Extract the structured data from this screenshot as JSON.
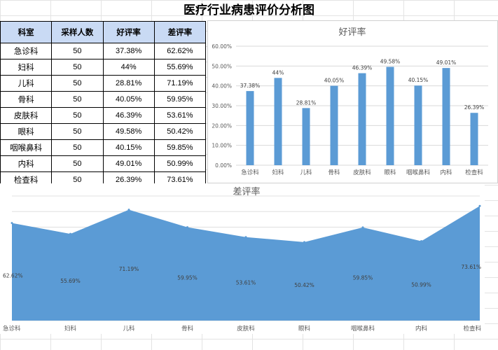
{
  "page": {
    "title": "医疗行业病患评价分析图"
  },
  "table": {
    "headers": [
      "科室",
      "采样人数",
      "好评率",
      "差评率"
    ],
    "rows": [
      [
        "急诊科",
        "50",
        "37.38%",
        "62.62%"
      ],
      [
        "妇科",
        "50",
        "44%",
        "55.69%"
      ],
      [
        "儿科",
        "50",
        "28.81%",
        "71.19%"
      ],
      [
        "骨科",
        "50",
        "40.05%",
        "59.95%"
      ],
      [
        "皮肤科",
        "50",
        "46.39%",
        "53.61%"
      ],
      [
        "眼科",
        "50",
        "49.58%",
        "50.42%"
      ],
      [
        "咽喉鼻科",
        "50",
        "40.15%",
        "59.85%"
      ],
      [
        "内科",
        "50",
        "49.01%",
        "50.99%"
      ],
      [
        "检查科",
        "50",
        "26.39%",
        "73.61%"
      ]
    ]
  },
  "chart_data": [
    {
      "type": "bar",
      "title": "好评率",
      "categories": [
        "急诊科",
        "妇科",
        "儿科",
        "骨科",
        "皮肤科",
        "眼科",
        "咽喉鼻科",
        "内科",
        "检查科"
      ],
      "values": [
        37.38,
        44,
        28.81,
        40.05,
        46.39,
        49.58,
        40.15,
        49.01,
        26.39
      ],
      "data_labels": [
        "37.38%",
        "44%",
        "28.81%",
        "40.05%",
        "46.39%",
        "49.58%",
        "40.15%",
        "49.01%",
        "26.39%"
      ],
      "yticks": [
        "0.00%",
        "10.00%",
        "20.00%",
        "30.00%",
        "40.00%",
        "50.00%",
        "60.00%"
      ],
      "ylim": [
        0,
        60
      ],
      "grid": true,
      "color": "#5b9bd5"
    },
    {
      "type": "area",
      "title": "差评率",
      "categories": [
        "急诊科",
        "妇科",
        "儿科",
        "骨科",
        "皮肤科",
        "眼科",
        "咽喉鼻科",
        "内科",
        "检查科"
      ],
      "values": [
        62.62,
        55.69,
        71.19,
        59.95,
        53.61,
        50.42,
        59.85,
        50.99,
        73.61
      ],
      "data_labels": [
        "62.62%",
        "55.69%",
        "71.19%",
        "59.95%",
        "53.61%",
        "50.42%",
        "59.85%",
        "50.99%",
        "73.61%"
      ],
      "ylim": [
        0,
        80
      ],
      "grid": true,
      "color": "#5b9bd5"
    }
  ]
}
